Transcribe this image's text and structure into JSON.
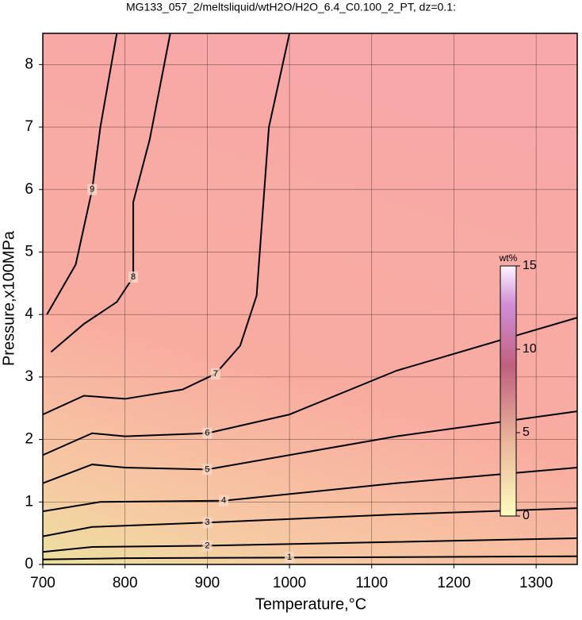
{
  "chart_data": {
    "type": "contour",
    "title": "MG133_057_2/meltsliquid/wtH2O/H2O_6.4_C0.100_2_PT, dz=0.1:",
    "xlabel": "Temperature,°C",
    "ylabel": "Pressure,x100MPa",
    "xlim": [
      700,
      1350
    ],
    "ylim": [
      0,
      8.5
    ],
    "xticks": [
      700,
      800,
      900,
      1000,
      1100,
      1200,
      1300
    ],
    "yticks": [
      0,
      1,
      2,
      3,
      4,
      5,
      6,
      7,
      8
    ],
    "grid": true,
    "line_color": "#000000",
    "series": [
      {
        "name": "1",
        "x": [
          700,
          800,
          1000,
          1350
        ],
        "y": [
          0.08,
          0.1,
          0.11,
          0.13
        ]
      },
      {
        "name": "2",
        "x": [
          700,
          760,
          900,
          1130,
          1350
        ],
        "y": [
          0.2,
          0.28,
          0.3,
          0.36,
          0.42
        ]
      },
      {
        "name": "3",
        "x": [
          700,
          760,
          900,
          1130,
          1350
        ],
        "y": [
          0.45,
          0.6,
          0.67,
          0.8,
          0.9
        ]
      },
      {
        "name": "4",
        "x": [
          700,
          770,
          920,
          1130,
          1350
        ],
        "y": [
          0.85,
          1.0,
          1.02,
          1.3,
          1.55
        ]
      },
      {
        "name": "5",
        "x": [
          700,
          760,
          800,
          900,
          1130,
          1350
        ],
        "y": [
          1.3,
          1.6,
          1.55,
          1.52,
          2.05,
          2.45
        ]
      },
      {
        "name": "6",
        "x": [
          700,
          760,
          800,
          900,
          1000,
          1130,
          1350
        ],
        "y": [
          1.75,
          2.1,
          2.05,
          2.1,
          2.4,
          3.1,
          3.95
        ]
      },
      {
        "name": "7",
        "x": [
          700,
          750,
          800,
          870,
          910,
          940,
          960,
          975,
          1000
        ],
        "y": [
          2.4,
          2.7,
          2.65,
          2.8,
          3.05,
          3.5,
          4.3,
          7,
          8.5
        ]
      },
      {
        "name": "8",
        "x": [
          710,
          750,
          790,
          810,
          810,
          830,
          855
        ],
        "y": [
          3.4,
          3.85,
          4.2,
          4.6,
          5.8,
          6.8,
          8.5
        ]
      },
      {
        "name": "9",
        "x": [
          705,
          740,
          760,
          770,
          790
        ],
        "y": [
          4.0,
          4.8,
          6.0,
          7.0,
          8.5
        ]
      }
    ],
    "colorbar": {
      "label": "wt%",
      "lim": [
        0,
        15
      ],
      "ticks": [
        0,
        5,
        10,
        15
      ]
    }
  }
}
